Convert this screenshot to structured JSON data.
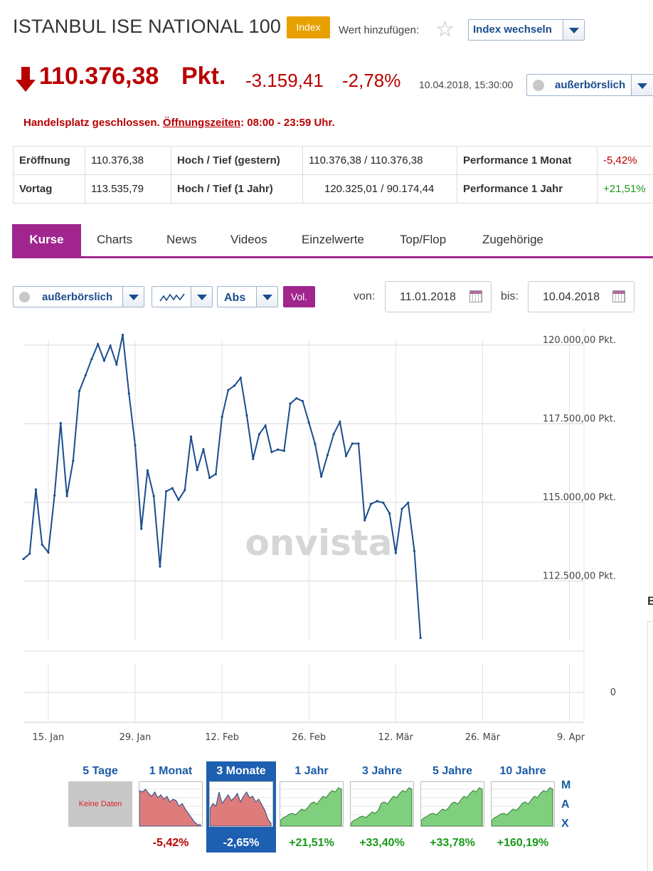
{
  "header": {
    "title": "ISTANBUL ISE NATIONAL 100",
    "badge": "Index",
    "add_label": "Wert hinzufügen:",
    "switch_label": "Index wechseln"
  },
  "quote": {
    "price": "110.376,38",
    "unit": "Pkt.",
    "change": "-3.159,41",
    "change_pct": "-2,78%",
    "timestamp": "10.04.2018, 15:30:00",
    "venue": "außerbörslich"
  },
  "status": {
    "prefix": "Handelsplatz geschlossen.",
    "link": "Öffnungszeiten",
    "suffix": ": 08:00 - 23:59 Uhr."
  },
  "stats": {
    "open_label": "Eröffnung",
    "open": "110.376,38",
    "prev_label": "Vortag",
    "prev": "113.535,79",
    "hl_day_label": "Hoch / Tief (gestern)",
    "hl_day": "110.376,38 / 110.376,38",
    "hl_year_label": "Hoch / Tief (1 Jahr)",
    "hl_year": "120.325,01 / 90.174,44",
    "perf_month_label": "Performance 1 Monat",
    "perf_month": "-5,42%",
    "perf_year_label": "Performance 1 Jahr",
    "perf_year": "+21,51%"
  },
  "tabs": [
    "Kurse",
    "Charts",
    "News",
    "Videos",
    "Einzelwerte",
    "Top/Flop",
    "Zugehörige"
  ],
  "controls": {
    "venue": "außerbörslich",
    "scale": "Abs",
    "vol": "Vol.",
    "from_label": "von:",
    "from": "11.01.2018",
    "to_label": "bis:",
    "to": "10.04.2018"
  },
  "watermark": "onvista",
  "chart_data": {
    "type": "line",
    "y_tick_labels": [
      "120.000,00 Pkt.",
      "117.500,00 Pkt.",
      "115.000,00 Pkt.",
      "112.500,00 Pkt."
    ],
    "volume_tick_label": "0",
    "x_tick_labels": [
      "15. Jan",
      "29. Jan",
      "12. Feb",
      "26. Feb",
      "12. Mär",
      "26. Mär",
      "9. Apr"
    ],
    "x_ticks_day": [
      4,
      18,
      32,
      46,
      60,
      74,
      88
    ],
    "ylim": [
      109500,
      120300
    ],
    "grid": true,
    "x_day": [
      0,
      1,
      2,
      3,
      4,
      5,
      6,
      7,
      8,
      9,
      10,
      11,
      12,
      13,
      14,
      15,
      16,
      17,
      18,
      19,
      20,
      21,
      22,
      23,
      24,
      25,
      26,
      27,
      28,
      29,
      30,
      31,
      32,
      33,
      34,
      35,
      36,
      37,
      38,
      39,
      40,
      41,
      42,
      43,
      44,
      45,
      46,
      47,
      48,
      49,
      50,
      51,
      52,
      53,
      54,
      55,
      56,
      57,
      58,
      59,
      60,
      61,
      62,
      63,
      64,
      65,
      66,
      67,
      68,
      69,
      70,
      71,
      72,
      73,
      74,
      75,
      76,
      77,
      78,
      79,
      80,
      81,
      82,
      83,
      84,
      85,
      86,
      87,
      88,
      89,
      90
    ],
    "values": [
      113200,
      113370,
      115410,
      113660,
      113410,
      115220,
      117520,
      115200,
      116320,
      118540,
      119040,
      119560,
      120030,
      119510,
      119980,
      119390,
      120330,
      118460,
      116820,
      114160,
      116020,
      115200,
      112960,
      115350,
      115450,
      115080,
      115390,
      117090,
      116030,
      116690,
      115780,
      115900,
      117720,
      118570,
      118710,
      118960,
      117760,
      116380,
      117170,
      117440,
      116600,
      116680,
      116640,
      118140,
      118310,
      118220,
      117540,
      116860,
      115820,
      116500,
      117170,
      117560,
      116480,
      116870,
      116870,
      114430,
      114950,
      115040,
      114990,
      114650,
      113390,
      114790,
      114990,
      113460,
      110690,
      null,
      null,
      null,
      null,
      null,
      null,
      null,
      null,
      null,
      null,
      null,
      null,
      null,
      null,
      null,
      null,
      null,
      null,
      null,
      null,
      null,
      null,
      null,
      null,
      null,
      null
    ]
  },
  "periods": [
    {
      "label": "5 Tage",
      "value": "",
      "nodata": "Keine Daten",
      "selected": false
    },
    {
      "label": "1 Monat",
      "value": "-5,42%",
      "trend": "down",
      "selected": false
    },
    {
      "label": "3 Monate",
      "value": "-2,65%",
      "trend": "down",
      "selected": true
    },
    {
      "label": "1 Jahr",
      "value": "+21,51%",
      "trend": "up",
      "selected": false
    },
    {
      "label": "3 Jahre",
      "value": "+33,40%",
      "trend": "up",
      "selected": false
    },
    {
      "label": "5 Jahre",
      "value": "+33,78%",
      "trend": "up",
      "selected": false
    },
    {
      "label": "10 Jahre",
      "value": "+160,19%",
      "trend": "up",
      "selected": false
    }
  ],
  "max_label": [
    "M",
    "A",
    "X"
  ]
}
